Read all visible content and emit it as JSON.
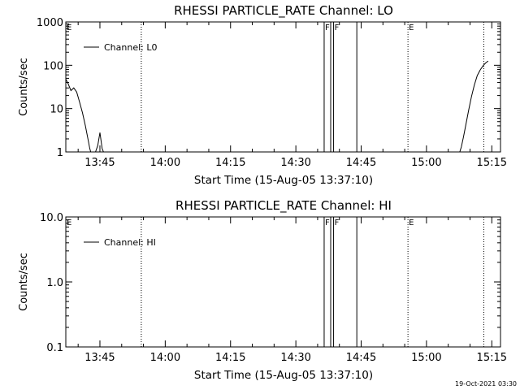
{
  "chart_data": [
    {
      "type": "line",
      "title": "RHESSI PARTICLE_RATE Channel: LO",
      "xlabel": "Start Time (15-Aug-05 13:37:10)",
      "ylabel": "Counts/sec",
      "y_scale": "log",
      "ylim": [
        1,
        1000
      ],
      "y_ticks": [
        "1",
        "10",
        "100",
        "1000"
      ],
      "xlim": [
        "13:37:10",
        "15:17:00"
      ],
      "x_ticks": [
        "13:45",
        "14:00",
        "14:15",
        "14:30",
        "14:45",
        "15:00",
        "15:15"
      ],
      "legend": {
        "position": "top-left",
        "entries": [
          "Channel: L0"
        ]
      },
      "series": [
        {
          "name": "Channel: L0",
          "segments": [
            {
              "x": [
                "13:37:10",
                "13:37:40",
                "13:38:20",
                "13:39:00",
                "13:39:40",
                "13:40:20",
                "13:41:00",
                "13:41:40",
                "13:42:10",
                "13:42:40",
                "13:43:00"
              ],
              "y": [
                48,
                38,
                26,
                30,
                24,
                14,
                8,
                4,
                2.2,
                1.2,
                0.9
              ]
            },
            {
              "x": [
                "13:43:50",
                "13:44:30",
                "13:45:00",
                "13:45:30",
                "13:46:00"
              ],
              "y": [
                0.9,
                1.4,
                2.8,
                1.2,
                0.9
              ]
            },
            {
              "x": [
                "15:07:30",
                "15:08:00",
                "15:08:30",
                "15:09:00",
                "15:09:40",
                "15:10:20",
                "15:11:00",
                "15:11:40",
                "15:12:20",
                "15:13:00",
                "15:13:40",
                "15:14:10"
              ],
              "y": [
                0.9,
                1.3,
                2.2,
                4,
                9,
                19,
                35,
                58,
                78,
                98,
                115,
                125
              ]
            }
          ]
        }
      ]
    },
    {
      "type": "line",
      "title": "RHESSI PARTICLE_RATE Channel: HI",
      "xlabel": "Start Time (15-Aug-05 13:37:10)",
      "ylabel": "Counts/sec",
      "y_scale": "log",
      "ylim": [
        0.1,
        10
      ],
      "y_ticks": [
        "0.1",
        "1.0",
        "10.0"
      ],
      "xlim": [
        "13:37:10",
        "15:17:00"
      ],
      "x_ticks": [
        "13:45",
        "14:00",
        "14:15",
        "14:30",
        "14:45",
        "15:00",
        "15:15"
      ],
      "legend": {
        "position": "top-left",
        "entries": [
          "Channel: HI"
        ]
      },
      "series": [
        {
          "name": "Channel: HI",
          "segments": []
        }
      ]
    }
  ],
  "markers": {
    "dotted_times": [
      "13:54:30",
      "14:55:45",
      "15:13:10"
    ],
    "solid_times": [
      "14:36:30",
      "14:38:00",
      "14:38:40",
      "14:44:00"
    ],
    "letters": [
      {
        "time": "13:37:10",
        "label": "E"
      },
      {
        "time": "14:36:30",
        "label": "F"
      },
      {
        "time": "14:38:40",
        "label": "F"
      },
      {
        "time": "14:55:45",
        "label": "E"
      }
    ]
  },
  "footer": {
    "timestamp": "19-Oct-2021 03:30"
  }
}
